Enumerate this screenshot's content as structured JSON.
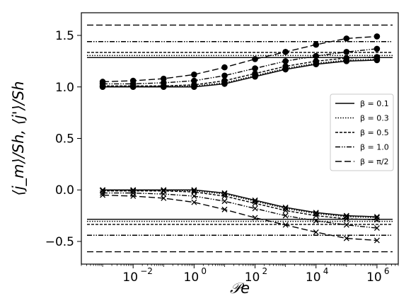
{
  "chart_data": {
    "type": "line",
    "xlabel": "𝒫e",
    "ylabel": "⟨j_m⟩/Sh, ⟨j'⟩/Sh",
    "xscale": "log",
    "xlim": [
      0.0002,
      5000000
    ],
    "ylim": [
      -0.72,
      1.72
    ],
    "x": [
      0.001,
      0.01,
      0.1,
      1,
      10,
      100,
      1000,
      10000,
      100000,
      1000000
    ],
    "x_ticks": [
      0.01,
      1,
      100,
      10000,
      1000000
    ],
    "x_tick_labels": [
      {
        "base": "10",
        "exp": "−2"
      },
      {
        "base": "10",
        "exp": "0"
      },
      {
        "base": "10",
        "exp": "2"
      },
      {
        "base": "10",
        "exp": "4"
      },
      {
        "base": "10",
        "exp": "6"
      }
    ],
    "y_ticks": [
      -0.5,
      0.0,
      0.5,
      1.0,
      1.5
    ],
    "y_tick_labels": [
      "−0.5",
      "0.0",
      "0.5",
      "1.0",
      "1.5"
    ],
    "grid": false,
    "legend_position": "right",
    "series": [
      {
        "name": "β = 0.1",
        "dash": "",
        "upper": [
          1.0,
          1.0,
          1.0,
          1.0,
          1.03,
          1.1,
          1.17,
          1.22,
          1.25,
          1.26
        ],
        "lower": [
          0.0,
          0.0,
          0.0,
          0.0,
          -0.03,
          -0.1,
          -0.17,
          -0.22,
          -0.25,
          -0.26
        ],
        "upper_limit": 1.285,
        "lower_limit": -0.285
      },
      {
        "name": "β = 0.3",
        "dash": "1.5,2",
        "upper": [
          1.005,
          1.005,
          1.005,
          1.01,
          1.04,
          1.11,
          1.18,
          1.23,
          1.26,
          1.27
        ],
        "lower": [
          -0.005,
          -0.005,
          -0.005,
          -0.01,
          -0.04,
          -0.11,
          -0.18,
          -0.23,
          -0.26,
          -0.27
        ],
        "upper_limit": 1.305,
        "lower_limit": -0.305
      },
      {
        "name": "β = 0.5",
        "dash": "4,2",
        "upper": [
          1.01,
          1.01,
          1.01,
          1.02,
          1.06,
          1.13,
          1.2,
          1.25,
          1.28,
          1.29
        ],
        "lower": [
          -0.01,
          -0.01,
          -0.01,
          -0.02,
          -0.06,
          -0.13,
          -0.2,
          -0.25,
          -0.28,
          -0.29
        ],
        "upper_limit": 1.335,
        "lower_limit": -0.335
      },
      {
        "name": "β = 1.0",
        "dash": "7,2,1.5,2,1.5,2",
        "upper": [
          1.03,
          1.03,
          1.04,
          1.06,
          1.11,
          1.18,
          1.25,
          1.3,
          1.34,
          1.37
        ],
        "lower": [
          -0.03,
          -0.03,
          -0.04,
          -0.06,
          -0.11,
          -0.18,
          -0.25,
          -0.3,
          -0.34,
          -0.37
        ],
        "upper_limit": 1.44,
        "lower_limit": -0.44
      },
      {
        "name": "β = π/2",
        "dash": "9,4",
        "upper": [
          1.05,
          1.06,
          1.08,
          1.12,
          1.19,
          1.27,
          1.34,
          1.41,
          1.47,
          1.49
        ],
        "lower": [
          -0.05,
          -0.06,
          -0.08,
          -0.12,
          -0.19,
          -0.27,
          -0.34,
          -0.41,
          -0.47,
          -0.49
        ],
        "upper_limit": 1.6,
        "lower_limit": -0.6
      }
    ],
    "markers": {
      "upper": "circle",
      "lower": "x"
    }
  }
}
